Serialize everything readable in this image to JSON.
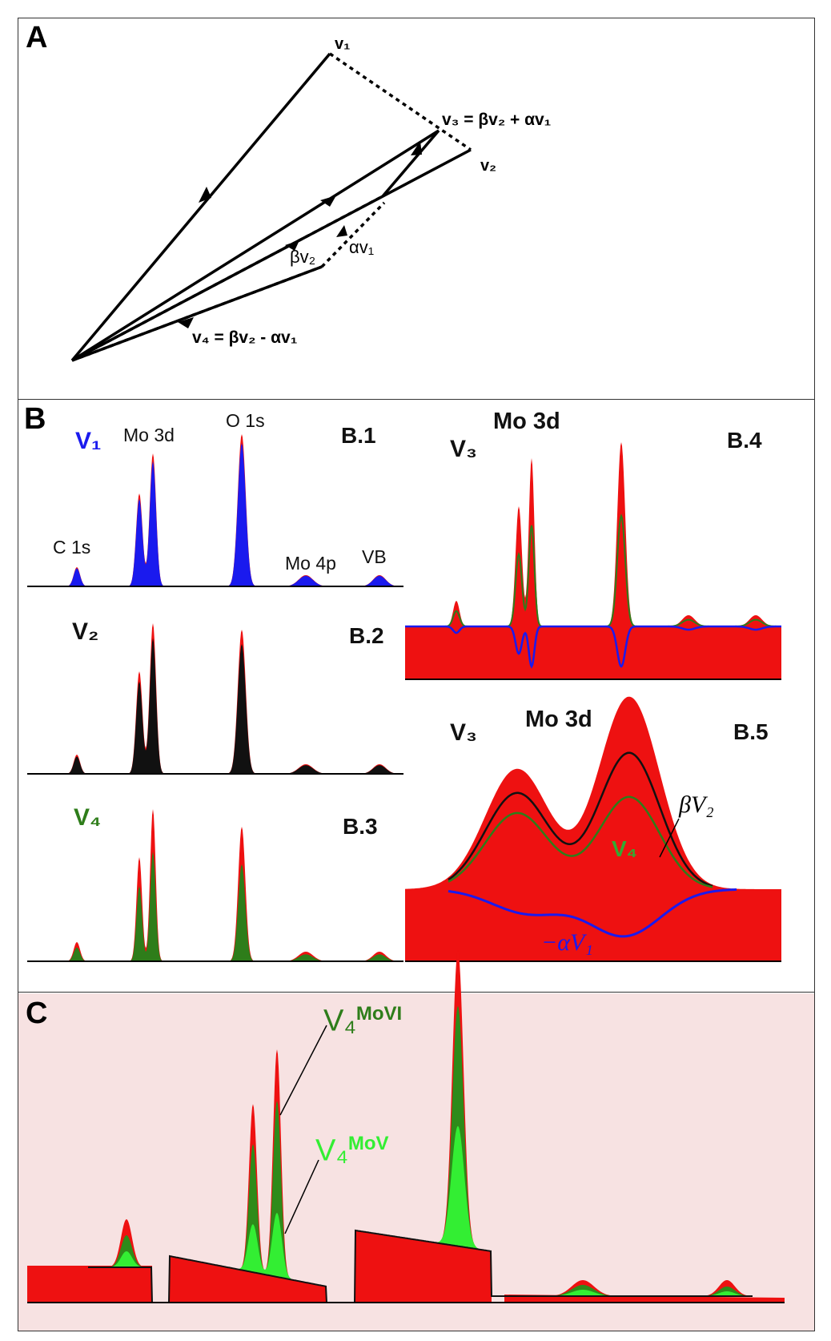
{
  "panels": {
    "A": {
      "letter": "A",
      "labels": {
        "v1": "v₁",
        "v2": "v₂",
        "v3": "v₃ = βv₂ + αv₁",
        "bv2": "βv₂",
        "av1": "αv₁",
        "v4": "v₄ = βv₂ - αv₁"
      }
    },
    "B": {
      "letter": "B",
      "b1": {
        "tag": "B.1",
        "v": "V₁",
        "peaks": [
          "C 1s",
          "Mo 3d",
          "O 1s",
          "Mo 4p",
          "VB"
        ]
      },
      "b2": {
        "tag": "B.2",
        "v": "V₂"
      },
      "b3": {
        "tag": "B.3",
        "v": "V₄"
      },
      "b4": {
        "tag": "B.4",
        "v": "V₃",
        "title": "Mo 3d"
      },
      "b5": {
        "tag": "B.5",
        "v": "V₃",
        "title": "Mo 3d",
        "bv2": "βV₂",
        "v4": "V₄",
        "av1": "−αV₁"
      }
    },
    "C": {
      "letter": "C",
      "movi_base": "V₄",
      "movi_sup": "MoVI",
      "mov_base": "V₄",
      "mov_sup": "MoV"
    }
  },
  "colors": {
    "red": "#ee1111",
    "blue": "#1a1aee",
    "black": "#111111",
    "dark_green": "#2e7d1a",
    "light_green": "#33ee33",
    "pink_bg": "#f7e2e2"
  }
}
